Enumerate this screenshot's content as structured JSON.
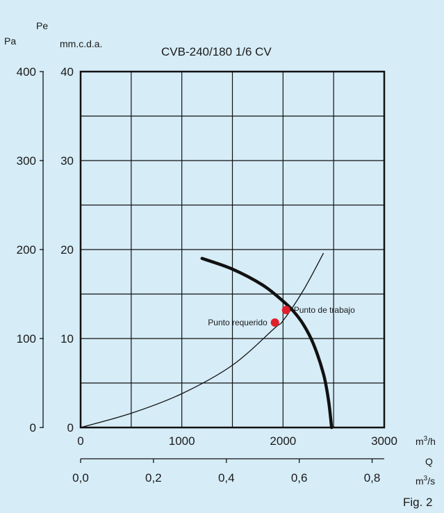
{
  "chart_data": {
    "type": "line",
    "title": "CVB-240/180 1/6 CV",
    "y_axis_left_outer": {
      "label": "Pa",
      "ticks": [
        "0",
        "100",
        "200",
        "300",
        "400"
      ],
      "range": [
        0,
        400
      ]
    },
    "y_axis_left_inner": {
      "label_top": "Pe",
      "label": "mm.c.d.a.",
      "ticks": [
        "0",
        "10",
        "20",
        "30",
        "40"
      ],
      "range": [
        0,
        40
      ]
    },
    "x_axis_primary": {
      "unit": "m3/h",
      "ticks": [
        "0",
        "1000",
        "2000",
        "3000"
      ],
      "range": [
        0,
        3000
      ]
    },
    "x_axis_secondary": {
      "label": "Q",
      "unit": "m3/s",
      "ticks": [
        "0,0",
        "0,2",
        "0,4",
        "0,6",
        "0,8"
      ],
      "range": [
        0,
        0.8333
      ]
    },
    "grid": true,
    "series": [
      {
        "id": "fan_curve",
        "style": "thick",
        "x": [
          1200,
          1500,
          1800,
          2000,
          2100,
          2200,
          2300,
          2400,
          2450,
          2480
        ],
        "y": [
          19,
          17.8,
          16,
          14.2,
          13.1,
          11.6,
          9.4,
          6,
          3,
          0
        ]
      },
      {
        "id": "system_curve",
        "style": "thin",
        "x": [
          0,
          500,
          1000,
          1500,
          1920,
          2000,
          2200,
          2400
        ],
        "y": [
          0,
          1.6,
          3.8,
          7.0,
          11.2,
          12.0,
          15.4,
          19.6
        ]
      }
    ],
    "points": [
      {
        "label": "Punto requerido",
        "x": 1920,
        "y": 11.8,
        "color": "#e0202a"
      },
      {
        "label": "Punto de trabajo",
        "x": 2030,
        "y": 13.2,
        "color": "#e0202a"
      }
    ],
    "footer_label": "Fig. 2",
    "colors": {
      "background": "#d6ecf7",
      "line": "#111111",
      "point": "#e0202a"
    }
  }
}
